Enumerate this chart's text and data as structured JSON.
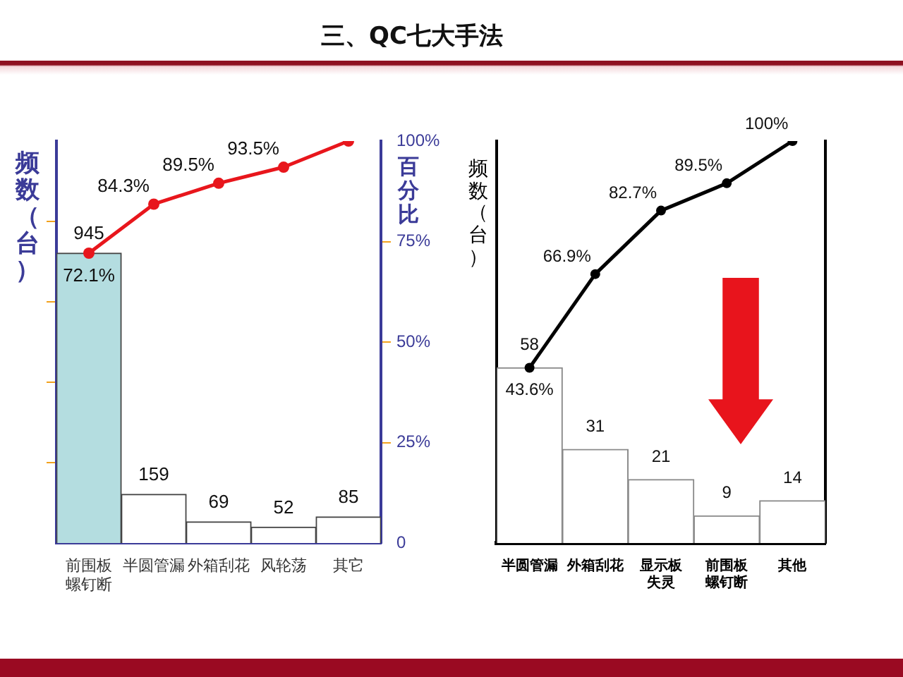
{
  "chart_data": [
    {
      "type": "bar",
      "title": "三、QC七大手法",
      "ylabel": "频数（台）",
      "y2label": "百分比",
      "categories": [
        "前围板螺钉断",
        "半圆管漏",
        "外箱刮花",
        "风轮荡",
        "其它"
      ],
      "series": [
        {
          "colors": [
            "#b4dde0",
            "#ffffff",
            "#ffffff",
            "#ffffff",
            "#ffffff"
          ],
          "values": [
            945,
            159,
            69,
            52,
            85
          ],
          "value_labels": [
            "945",
            "159",
            "69",
            "52",
            "85"
          ]
        },
        {
          "type": "line",
          "axis": "y2",
          "color": "#e8161c",
          "values": [
            72.1,
            84.3,
            89.5,
            93.5,
            100
          ],
          "value_labels": [
            "72.1%",
            "84.3%",
            "89.5%",
            "93.5%",
            null
          ]
        }
      ],
      "ylim": [
        0,
        1310
      ],
      "yticks": [
        {
          "value": 262,
          "label": null
        },
        {
          "value": 524,
          "label": null
        },
        {
          "value": 786,
          "label": null
        },
        {
          "value": 1048,
          "label": null
        }
      ],
      "y2lim": [
        0,
        100
      ],
      "y2ticks": [
        0,
        {
          "value": 25,
          "label": "25%"
        },
        {
          "value": 50,
          "label": "50%"
        },
        {
          "value": 75,
          "label": "75%"
        },
        {
          "value": 100,
          "label": "100%"
        }
      ],
      "marker": "circle"
    },
    {
      "type": "bar",
      "ylabel": "频数（台）",
      "categories": [
        "半圆管漏",
        "外箱刮花",
        "显示板失灵",
        "前围板螺钉断",
        "其他"
      ],
      "series": [
        {
          "color": "#ffffff",
          "values": [
            58,
            31,
            21,
            9,
            14
          ],
          "value_labels": [
            "58",
            "31",
            "21",
            "9",
            "14"
          ]
        },
        {
          "type": "line",
          "axis": "y2",
          "color": "#000000",
          "values": [
            43.6,
            66.9,
            82.7,
            89.5,
            100
          ],
          "value_labels": [
            "43.6%",
            "66.9%",
            "82.7%",
            "89.5%",
            "100%"
          ]
        }
      ],
      "ylim": [
        0,
        133
      ],
      "y2lim": [
        0,
        100
      ],
      "tick_labels": "x",
      "marker": "circle"
    }
  ]
}
